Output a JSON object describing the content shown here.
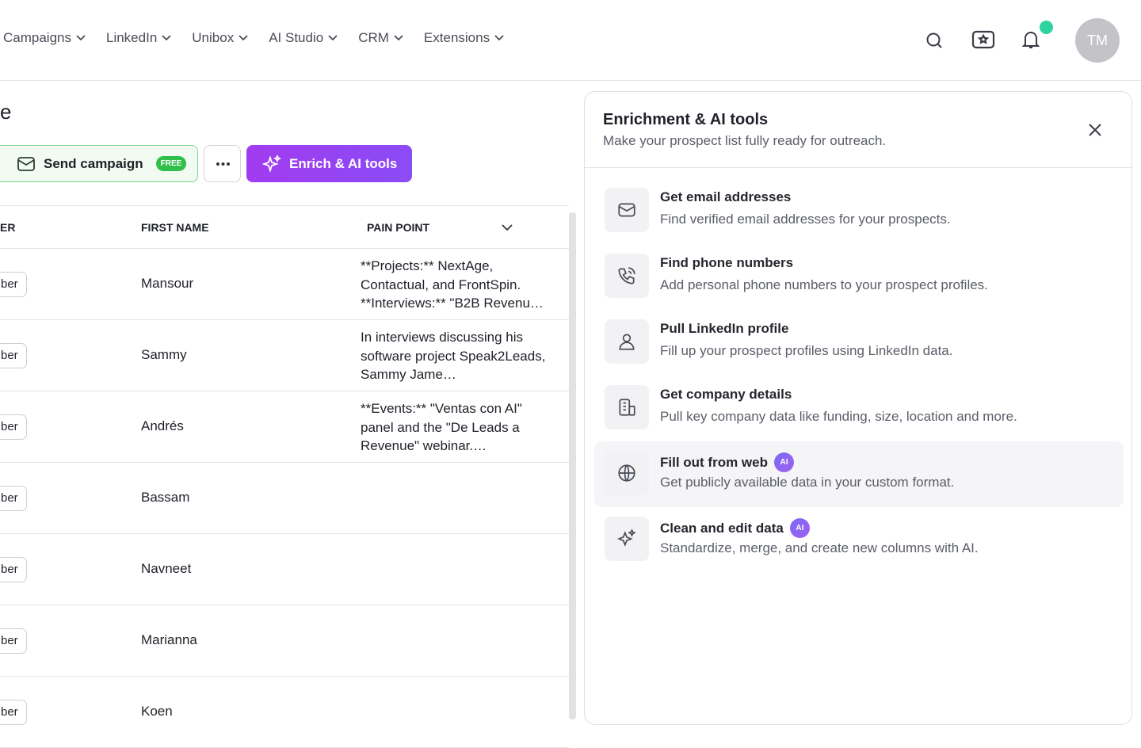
{
  "nav": {
    "items": [
      "Campaigns",
      "LinkedIn",
      "Unibox",
      "AI Studio",
      "CRM",
      "Extensions"
    ],
    "avatar": "TM"
  },
  "page": {
    "title": "e"
  },
  "toolbar": {
    "send": "Send campaign",
    "free": "FREE",
    "enrich": "Enrich & AI tools"
  },
  "table": {
    "headers": [
      "ER",
      "FIRST NAME",
      "PAIN POINT"
    ],
    "rows": [
      [
        "ber",
        "Mansour",
        "**Projects:** NextAge, Contactual, and FrontSpin. **Interviews:** \"B2B Revenu…"
      ],
      [
        "ber",
        "Sammy",
        "In interviews discussing his software project Speak2Leads, Sammy Jame…"
      ],
      [
        "ber",
        "Andrés",
        "**Events:** \"Ventas con AI\" panel and the \"De Leads a Revenue\" webinar.…"
      ],
      [
        "ber",
        "Bassam",
        null
      ],
      [
        "ber",
        "Navneet",
        null
      ],
      [
        "ber",
        "Marianna",
        null
      ],
      [
        "ber",
        "Koen",
        null
      ]
    ]
  },
  "panel": {
    "title": "Enrichment & AI tools",
    "subtitle": "Make your prospect list fully ready for outreach.",
    "tools": [
      {
        "title": "Get email addresses",
        "description": "Find verified email addresses for your prospects."
      },
      {
        "title": "Find phone numbers",
        "description": "Add personal phone numbers to your prospect profiles."
      },
      {
        "title": "Pull LinkedIn profile",
        "description": "Fill up your prospect profiles using LinkedIn data."
      },
      {
        "title": "Get company details",
        "description": "Pull key company data like funding, size, location and more."
      },
      {
        "title": "Fill out from web",
        "badge": "AI",
        "description": "Get publicly available data in your custom format."
      },
      {
        "title": "Clean and edit data",
        "badge": "AI",
        "description": "Standardize, merge, and create new columns with AI."
      }
    ]
  }
}
